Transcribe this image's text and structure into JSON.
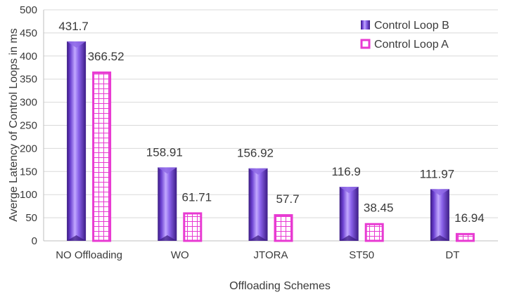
{
  "chart_data": {
    "type": "bar",
    "title": "",
    "xlabel": "Offloading Schemes",
    "ylabel": "Averge Latency of Control Loops in ms",
    "ylim": [
      0,
      500
    ],
    "yticks": [
      0,
      50,
      100,
      150,
      200,
      250,
      300,
      350,
      400,
      450,
      500
    ],
    "grid": true,
    "legend_position": "top-right",
    "categories": [
      "NO Offloading",
      "WO",
      "JTORA",
      "ST50",
      "DT"
    ],
    "series": [
      {
        "name": "Control Loop B",
        "values": [
          431.7,
          158.91,
          156.92,
          116.9,
          111.97
        ],
        "labels": [
          "431.7",
          "158.91",
          "156.92",
          "116.9",
          "111.97"
        ],
        "color": "#7b4fd6"
      },
      {
        "name": "Control Loop A",
        "values": [
          366.52,
          61.71,
          57.7,
          38.45,
          16.94
        ],
        "labels": [
          "366.52",
          "61.71",
          "57.7",
          "38.45",
          "16.94"
        ],
        "color": "#e83ad2"
      }
    ]
  }
}
